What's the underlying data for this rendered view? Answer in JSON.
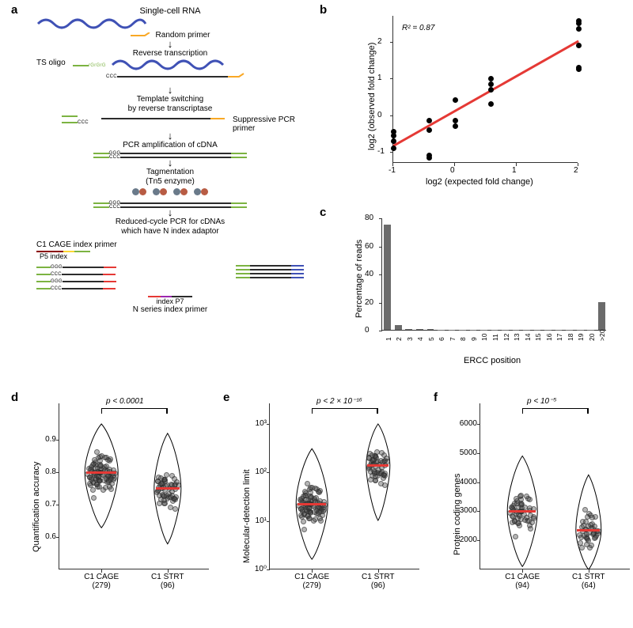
{
  "panels": {
    "a": "a",
    "b": "b",
    "c": "c",
    "d": "d",
    "e": "e",
    "f": "f"
  },
  "diagram": {
    "title": "Single-cell RNA",
    "random_primer": "Random primer",
    "reverse_transcription": "Reverse transcription",
    "ts_oligo": "TS oligo",
    "rgrg": "rGrGrG",
    "template_switch1": "Template switching",
    "template_switch2": "by reverse transcriptase",
    "suppressive": "Suppressive PCR primer",
    "pcr_amp": "PCR amplification of cDNA",
    "tagment1": "Tagmentation",
    "tagment2": "(Tn5 enzyme)",
    "reduced1": "Reduced-cycle PCR for cDNAs",
    "reduced2": "which have N index adaptor",
    "c1_cage_primer": "C1 CAGE index primer",
    "p5_index": "P5  index",
    "index_p7": "index   P7",
    "n_series": "N series index primer",
    "ccc": "CCC",
    "ggg": "GGG",
    "colors": {
      "rna": "#3f51b5",
      "green": "#7cb342",
      "orange": "#f9a825",
      "black": "#2c2c2c",
      "red": "#e53935",
      "blue": "#2962ff",
      "darkred": "#8b0000",
      "yellow": "#fdd835",
      "purple": "#9c27b0"
    }
  },
  "scatter": {
    "r2_label": "R² = 0.87",
    "xlabel": "log2 (expected fold change)",
    "ylabel": "log2 (observed fold change)",
    "xlim": [
      -1,
      2
    ],
    "ylim": [
      -1.3,
      2.7
    ],
    "xticks": [
      -1,
      0,
      1,
      2
    ],
    "yticks": [
      -1,
      0,
      1,
      2
    ],
    "points": [
      [
        -1,
        -0.7
      ],
      [
        -1,
        -0.55
      ],
      [
        -1,
        -0.9
      ],
      [
        -1,
        -0.45
      ],
      [
        -0.42,
        -0.15
      ],
      [
        -0.42,
        -0.4
      ],
      [
        -0.42,
        -1.15
      ],
      [
        -0.42,
        -1.1
      ],
      [
        0,
        -0.15
      ],
      [
        0,
        -0.3
      ],
      [
        0,
        0.4
      ],
      [
        0.58,
        0.7
      ],
      [
        0.58,
        0.85
      ],
      [
        0.58,
        1.0
      ],
      [
        0.58,
        0.3
      ],
      [
        2,
        1.9
      ],
      [
        2,
        2.35
      ],
      [
        2,
        2.5
      ],
      [
        2,
        2.55
      ],
      [
        2,
        1.25
      ],
      [
        2,
        1.3
      ]
    ],
    "fit": {
      "x1": -1,
      "y1": -0.8,
      "x2": 2,
      "y2": 2.05,
      "color": "#e53935"
    }
  },
  "barplot": {
    "ylabel": "Percentage of reads",
    "xlabel": "ERCC position",
    "ylim": [
      0,
      80
    ],
    "yticks": [
      0,
      20,
      40,
      60,
      80
    ],
    "categories": [
      "1",
      "2",
      "3",
      "4",
      "5",
      "6",
      "7",
      "8",
      "9",
      "10",
      "11",
      "12",
      "13",
      "14",
      "15",
      "16",
      "17",
      "18",
      "19",
      "20",
      ">20"
    ],
    "values": [
      75,
      3.2,
      0.7,
      0.4,
      0.3,
      0.25,
      0.24,
      0.23,
      0.22,
      0.21,
      0.205,
      0.2,
      0.2,
      0.2,
      0.2,
      0.2,
      0.2,
      0.2,
      0.2,
      0.2,
      20
    ],
    "bar_color": "#6b6b6b"
  },
  "vio_d": {
    "ylabel": "Quantification accuracy",
    "cats": [
      "C1 CAGE",
      "C1 STRT"
    ],
    "ns": [
      "(279)",
      "(96)"
    ],
    "pval": "p < 0.0001",
    "ylim": [
      0.5,
      0.95
    ],
    "yticks": [
      0.6,
      0.7,
      0.8,
      0.9
    ],
    "medians": [
      0.8,
      0.75
    ],
    "widths": [
      42,
      34
    ]
  },
  "vio_e": {
    "ylabel": "Molecular-detection limit",
    "cats": [
      "C1 CAGE",
      "C1 STRT"
    ],
    "ns": [
      "(279)",
      "(96)"
    ],
    "pval": "p < 2 × 10⁻¹⁶",
    "ylim_log": [
      0,
      3
    ],
    "yticks_labels": [
      "10⁰",
      "10¹",
      "10²",
      "10³"
    ],
    "medians_log": [
      1.35,
      2.15
    ],
    "widths": [
      40,
      30
    ]
  },
  "vio_f": {
    "ylabel": "Protein coding genes",
    "cats": [
      "C1 CAGE",
      "C1 STRT"
    ],
    "ns": [
      "(94)",
      "(64)"
    ],
    "pval": "p < 10⁻⁵",
    "ylim": [
      1000,
      6000
    ],
    "yticks": [
      2000,
      3000,
      4000,
      5000,
      6000
    ],
    "medians": [
      3000,
      2350
    ],
    "widths": [
      38,
      32
    ]
  }
}
